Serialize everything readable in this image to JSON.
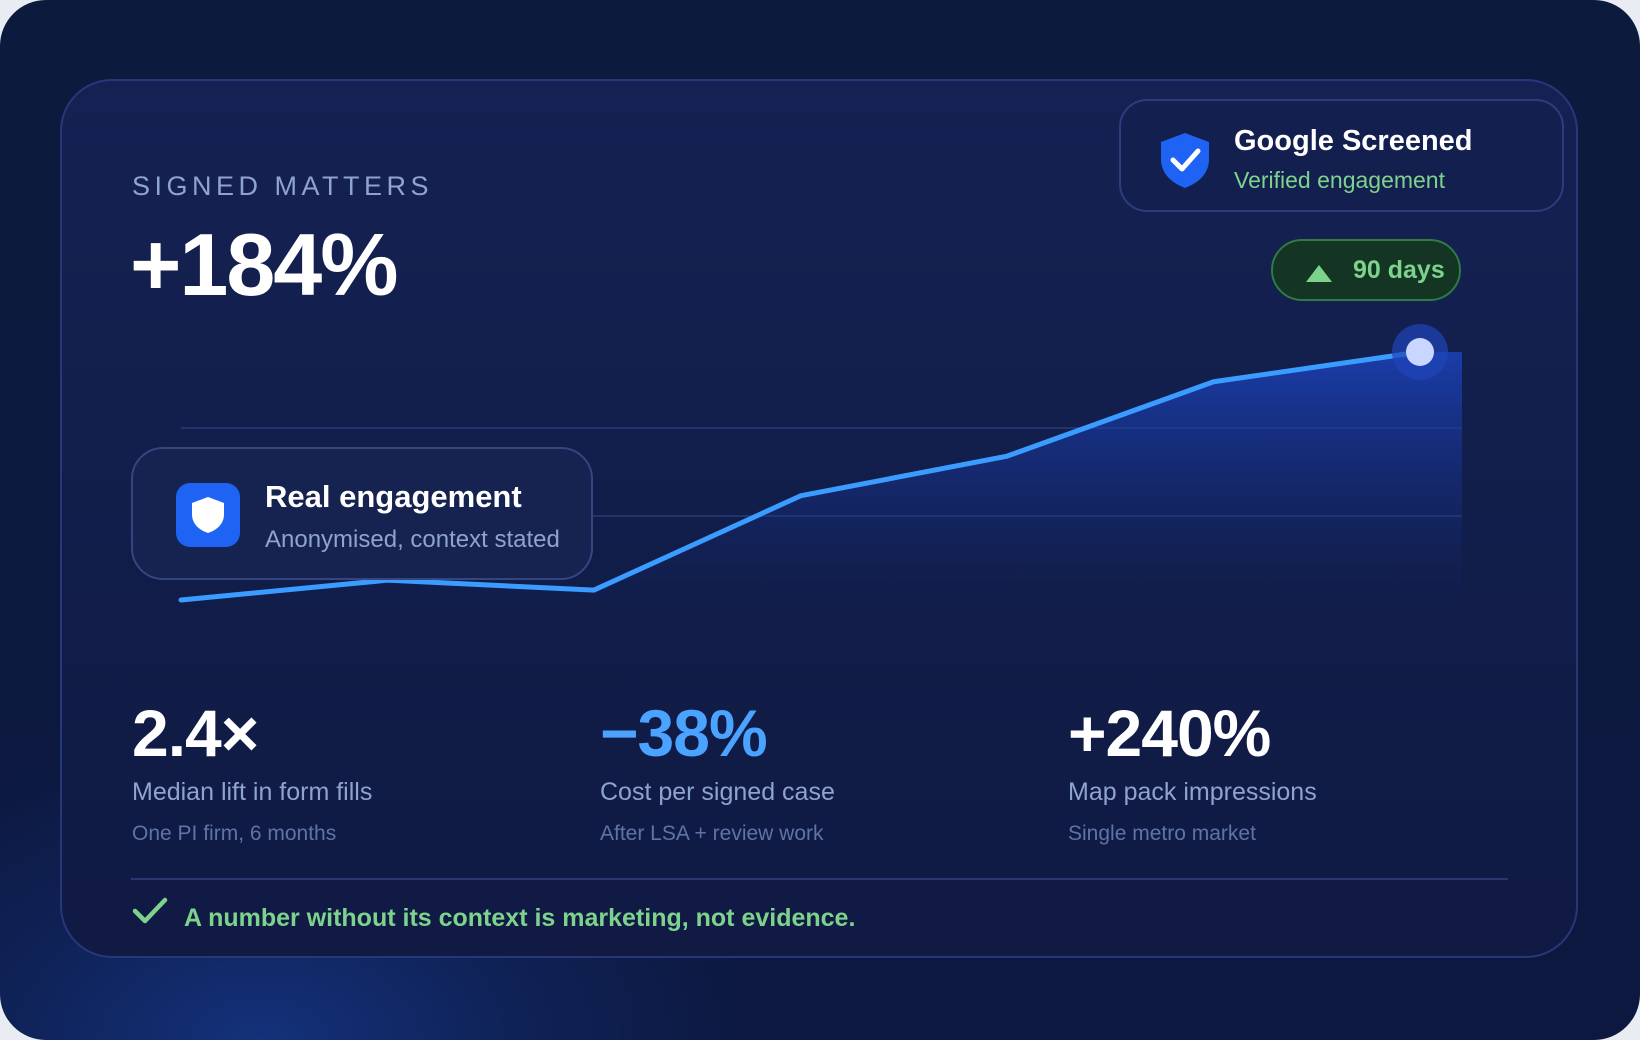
{
  "header": {
    "eyebrow": "SIGNED MATTERS",
    "headline": "+184%"
  },
  "verified_badge": {
    "title": "Google Screened",
    "subtitle": "Verified engagement",
    "icon": "shield-check-icon"
  },
  "period_pill": {
    "label": "90 days",
    "icon": "triangle-up-icon"
  },
  "engagement_card": {
    "title": "Real engagement",
    "subtitle": "Anonymised, context stated",
    "icon": "shield-icon"
  },
  "chart_data": {
    "type": "area",
    "title": "",
    "xlabel": "",
    "ylabel": "",
    "grid": true,
    "highlight_last_point": true,
    "series": [
      {
        "values": [
          0,
          4,
          2,
          21,
          29,
          44,
          50
        ]
      }
    ]
  },
  "stats": [
    {
      "value": "2.4×",
      "label": "Median lift in form fills",
      "note": "One PI firm, 6 months"
    },
    {
      "value": "−38%",
      "label": "Cost per signed case",
      "note": "After LSA + review work"
    },
    {
      "value": "+240%",
      "label": "Map pack impressions",
      "note": "Single metro market"
    }
  ],
  "footer": {
    "text": "A number without its context is marketing, not evidence.",
    "icon": "checkmark-icon"
  },
  "colors": {
    "background": "#0c1a3d",
    "card": "#131f4f",
    "line": "#3b9cff",
    "accent_blue": "#4aa3ff",
    "accent_green": "#7dd38c",
    "muted_text": "#8ea3cf",
    "badge_blue": "#1f63f5"
  }
}
